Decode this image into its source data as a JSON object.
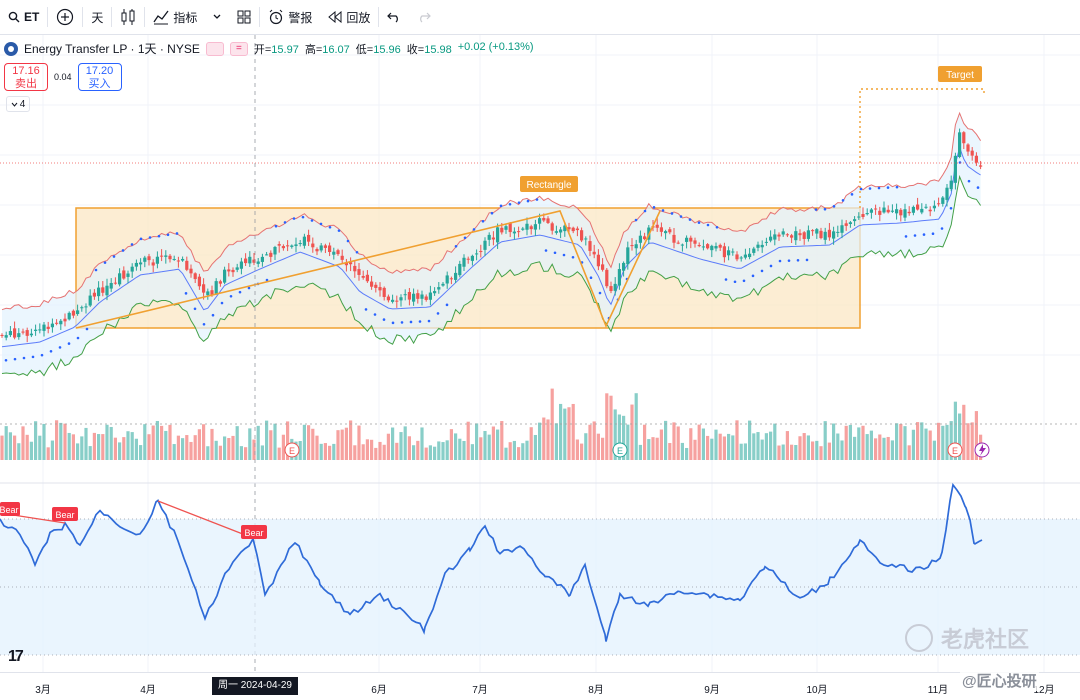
{
  "toolbar": {
    "symbol": "ET",
    "interval": "天",
    "indicators_label": "指标",
    "alert_label": "警报",
    "replay_label": "回放"
  },
  "legend": {
    "name": "Energy Transfer LP · 1天 · NYSE",
    "open_label": "开=",
    "open": "15.97",
    "high_label": "高=",
    "high": "16.07",
    "low_label": "低=",
    "low": "15.96",
    "close_label": "收=",
    "close": "15.98",
    "change": "+0.02 (+0.13%)"
  },
  "trade": {
    "sell_price": "17.16",
    "sell_label": "卖出",
    "spread": "0.04",
    "buy_price": "17.20",
    "buy_label": "买入"
  },
  "indicator_count": "4",
  "annotations": {
    "target": "Target",
    "rectangle": "Rectangle",
    "bear": "Bear",
    "earnings": "E"
  },
  "time_axis": {
    "ticks": [
      "3月",
      "4月",
      "6月",
      "7月",
      "8月",
      "9月",
      "10月",
      "11月",
      "12月"
    ],
    "cursor_date": "周一 2024-04-29"
  },
  "watermarks": {
    "tiger": "老虎社区",
    "brand": "@匠心投研"
  },
  "colors": {
    "up": "#26a69a",
    "down": "#ef5350",
    "rectangle": "#f0a030",
    "rsi_line": "#2962ff",
    "bb_upper": "#e57373",
    "bb_lower": "#43a047",
    "sma": "#5c7cfa",
    "psar": "#2962ff"
  }
}
